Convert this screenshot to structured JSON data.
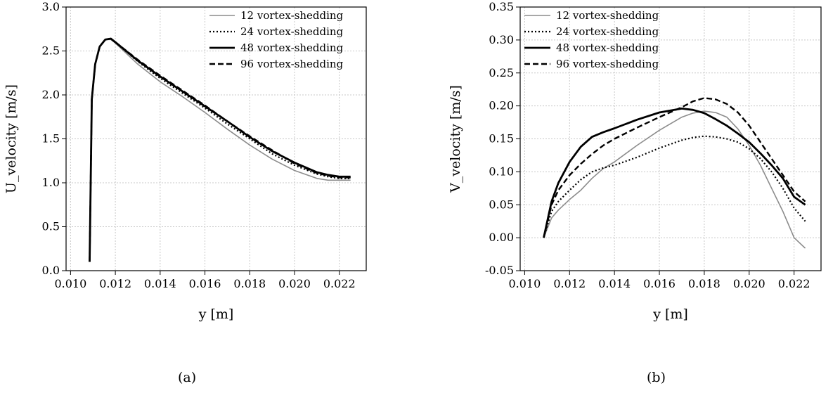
{
  "chart_data": [
    {
      "type": "line",
      "caption": "(a)",
      "xlabel": "y [m]",
      "ylabel": "U_velocity [m/s]",
      "xlim": [
        0.0098,
        0.0232
      ],
      "ylim": [
        0.0,
        3.0
      ],
      "xticks": [
        "0.010",
        "0.012",
        "0.014",
        "0.016",
        "0.018",
        "0.020",
        "0.022"
      ],
      "yticks": [
        "0.0",
        "0.5",
        "1.0",
        "1.5",
        "2.0",
        "2.5",
        "3.0"
      ],
      "grid": true,
      "legend_position": "top-right",
      "series": [
        {
          "name": "12 vortex-shedding",
          "color": "#8c8c8c",
          "style": "thin-solid",
          "x": [
            0.01085,
            0.01095,
            0.0111,
            0.0113,
            0.01155,
            0.0118,
            0.012,
            0.013,
            0.014,
            0.015,
            0.016,
            0.017,
            0.018,
            0.019,
            0.02,
            0.021,
            0.0215,
            0.022,
            0.0225
          ],
          "y": [
            0.1,
            1.95,
            2.35,
            2.55,
            2.63,
            2.63,
            2.59,
            2.35,
            2.15,
            1.98,
            1.8,
            1.61,
            1.43,
            1.27,
            1.14,
            1.05,
            1.03,
            1.03,
            1.03
          ]
        },
        {
          "name": "24 vortex-shedding",
          "color": "#000000",
          "style": "dotted",
          "x": [
            0.01085,
            0.01095,
            0.0111,
            0.0113,
            0.01155,
            0.0118,
            0.012,
            0.013,
            0.014,
            0.015,
            0.016,
            0.017,
            0.018,
            0.019,
            0.02,
            0.021,
            0.0215,
            0.022,
            0.0225
          ],
          "y": [
            0.1,
            1.95,
            2.35,
            2.55,
            2.63,
            2.64,
            2.6,
            2.38,
            2.19,
            2.02,
            1.85,
            1.67,
            1.5,
            1.33,
            1.2,
            1.1,
            1.07,
            1.05,
            1.05
          ]
        },
        {
          "name": "48 vortex-shedding",
          "color": "#000000",
          "style": "thick-solid",
          "x": [
            0.01085,
            0.01095,
            0.0111,
            0.0113,
            0.01155,
            0.0118,
            0.012,
            0.013,
            0.014,
            0.015,
            0.016,
            0.017,
            0.018,
            0.019,
            0.02,
            0.021,
            0.0215,
            0.022,
            0.0225
          ],
          "y": [
            0.1,
            1.95,
            2.35,
            2.55,
            2.63,
            2.64,
            2.6,
            2.39,
            2.21,
            2.04,
            1.87,
            1.7,
            1.52,
            1.36,
            1.23,
            1.12,
            1.09,
            1.07,
            1.07
          ]
        },
        {
          "name": "96 vortex-shedding",
          "color": "#000000",
          "style": "dashed",
          "x": [
            0.01085,
            0.01095,
            0.0111,
            0.0113,
            0.01155,
            0.0118,
            0.012,
            0.013,
            0.014,
            0.015,
            0.016,
            0.017,
            0.018,
            0.019,
            0.02,
            0.021,
            0.0215,
            0.022,
            0.0225
          ],
          "y": [
            0.1,
            1.95,
            2.35,
            2.55,
            2.63,
            2.64,
            2.6,
            2.4,
            2.22,
            2.05,
            1.88,
            1.7,
            1.53,
            1.37,
            1.22,
            1.11,
            1.08,
            1.06,
            1.06
          ]
        }
      ]
    },
    {
      "type": "line",
      "caption": "(b)",
      "xlabel": "y [m]",
      "ylabel": "V_velocity [m/s]",
      "xlim": [
        0.0098,
        0.0232
      ],
      "ylim": [
        -0.05,
        0.35
      ],
      "xticks": [
        "0.010",
        "0.012",
        "0.014",
        "0.016",
        "0.018",
        "0.020",
        "0.022"
      ],
      "yticks": [
        "-0.05",
        "0.00",
        "0.05",
        "0.10",
        "0.15",
        "0.20",
        "0.25",
        "0.30",
        "0.35"
      ],
      "grid": true,
      "legend_position": "top-left",
      "series": [
        {
          "name": "12 vortex-shedding",
          "color": "#8c8c8c",
          "style": "thin-solid",
          "x": [
            0.01085,
            0.0112,
            0.0115,
            0.012,
            0.0125,
            0.013,
            0.0135,
            0.014,
            0.015,
            0.016,
            0.017,
            0.0175,
            0.018,
            0.0185,
            0.019,
            0.0195,
            0.02,
            0.0205,
            0.021,
            0.0215,
            0.022,
            0.0225
          ],
          "y": [
            0.0,
            0.03,
            0.042,
            0.058,
            0.072,
            0.09,
            0.105,
            0.115,
            0.14,
            0.163,
            0.183,
            0.189,
            0.192,
            0.19,
            0.183,
            0.165,
            0.14,
            0.11,
            0.075,
            0.04,
            0.0,
            -0.016
          ]
        },
        {
          "name": "24 vortex-shedding",
          "color": "#000000",
          "style": "dotted",
          "x": [
            0.01085,
            0.0112,
            0.0115,
            0.012,
            0.0125,
            0.013,
            0.0135,
            0.014,
            0.015,
            0.016,
            0.017,
            0.0175,
            0.018,
            0.0185,
            0.019,
            0.0195,
            0.02,
            0.0205,
            0.021,
            0.0215,
            0.022,
            0.0225
          ],
          "y": [
            0.0,
            0.04,
            0.055,
            0.072,
            0.088,
            0.1,
            0.106,
            0.11,
            0.122,
            0.136,
            0.148,
            0.152,
            0.154,
            0.153,
            0.15,
            0.145,
            0.135,
            0.12,
            0.1,
            0.075,
            0.045,
            0.025
          ]
        },
        {
          "name": "48 vortex-shedding",
          "color": "#000000",
          "style": "thick-solid",
          "x": [
            0.01085,
            0.0112,
            0.0115,
            0.012,
            0.0125,
            0.013,
            0.0135,
            0.014,
            0.015,
            0.016,
            0.017,
            0.0175,
            0.018,
            0.0185,
            0.019,
            0.0195,
            0.02,
            0.0205,
            0.021,
            0.0215,
            0.022,
            0.0225
          ],
          "y": [
            0.0,
            0.055,
            0.083,
            0.115,
            0.138,
            0.153,
            0.16,
            0.166,
            0.179,
            0.19,
            0.196,
            0.194,
            0.189,
            0.18,
            0.17,
            0.158,
            0.145,
            0.128,
            0.11,
            0.09,
            0.062,
            0.05
          ]
        },
        {
          "name": "96 vortex-shedding",
          "color": "#000000",
          "style": "dashed",
          "x": [
            0.01085,
            0.0112,
            0.0115,
            0.012,
            0.0125,
            0.013,
            0.0135,
            0.014,
            0.015,
            0.016,
            0.017,
            0.0175,
            0.018,
            0.0185,
            0.019,
            0.0195,
            0.02,
            0.0205,
            0.021,
            0.0215,
            0.022,
            0.0225
          ],
          "y": [
            0.0,
            0.05,
            0.072,
            0.095,
            0.112,
            0.127,
            0.14,
            0.15,
            0.167,
            0.183,
            0.198,
            0.207,
            0.212,
            0.21,
            0.203,
            0.19,
            0.17,
            0.145,
            0.12,
            0.095,
            0.07,
            0.055
          ]
        }
      ]
    }
  ]
}
